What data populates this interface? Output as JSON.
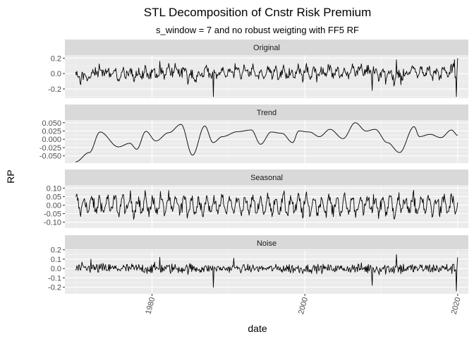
{
  "chart_data": {
    "type": "line",
    "title": "STL Decomposition of Cnstr Risk Premium",
    "subtitle": "s_window = 7 and no robust weigting with FF5 RF",
    "xlabel": "date",
    "ylabel": "RP",
    "xlim": [
      1968.6,
      2021.4
    ],
    "x_ticks": [
      1980,
      2000,
      2020
    ],
    "x_tick_labels": [
      "1980",
      "2000",
      "2020"
    ],
    "x_minor_ticks": [
      1970,
      1990,
      2010
    ],
    "x_range": [
      1970.0,
      2020.0
    ],
    "grid": true,
    "facets": [
      {
        "name": "Original",
        "ylim": [
          -0.32,
          0.24
        ],
        "y_ticks": [
          -0.2,
          0.0,
          0.2
        ],
        "y_tick_labels": [
          "-0.2",
          "0.0",
          "0.2"
        ],
        "y_minor_ticks": [
          -0.3,
          -0.1,
          0.1
        ],
        "key_points": [
          [
            1970.0,
            0.02
          ],
          [
            1971.0,
            -0.08
          ],
          [
            1972.6,
            0.08
          ],
          [
            1981.0,
            0.16
          ],
          [
            1988.0,
            -0.3
          ],
          [
            1990.9,
            0.13
          ],
          [
            1996.5,
            -0.08
          ],
          [
            2008.8,
            -0.22
          ],
          [
            2012.0,
            0.18
          ],
          [
            2019.6,
            0.18
          ],
          [
            2019.8,
            -0.3
          ],
          [
            2020.0,
            0.2
          ]
        ]
      },
      {
        "name": "Trend",
        "ylim": [
          -0.072,
          0.058
        ],
        "y_ticks": [
          -0.05,
          -0.025,
          0.0,
          0.025,
          0.05
        ],
        "y_tick_labels": [
          "-0.050",
          "-0.025",
          "0.000",
          "0.025",
          "0.050"
        ],
        "key_points": [
          [
            1970.0,
            -0.068
          ],
          [
            1971.8,
            -0.04
          ],
          [
            1973.2,
            0.022
          ],
          [
            1975.6,
            -0.023
          ],
          [
            1977.1,
            -0.012
          ],
          [
            1978.0,
            -0.03
          ],
          [
            1979.2,
            0.024
          ],
          [
            1980.5,
            -0.005
          ],
          [
            1982.2,
            0.02
          ],
          [
            1983.8,
            0.045
          ],
          [
            1985.3,
            -0.048
          ],
          [
            1986.9,
            0.04
          ],
          [
            1988.0,
            -0.01
          ],
          [
            1989.2,
            0.008
          ],
          [
            1991.2,
            0.023
          ],
          [
            1993.0,
            0.028
          ],
          [
            1994.2,
            -0.015
          ],
          [
            1995.6,
            0.022
          ],
          [
            1997.0,
            0.018
          ],
          [
            1998.4,
            -0.01
          ],
          [
            1999.2,
            0.025
          ],
          [
            2000.6,
            0.022
          ],
          [
            2001.9,
            0.008
          ],
          [
            2003.3,
            0.03
          ],
          [
            2005.0,
            0.002
          ],
          [
            2006.6,
            0.05
          ],
          [
            2008.0,
            0.025
          ],
          [
            2009.2,
            0.03
          ],
          [
            2010.8,
            -0.01
          ],
          [
            2012.4,
            -0.04
          ],
          [
            2014.3,
            0.038
          ],
          [
            2015.0,
            0.008
          ],
          [
            2016.4,
            0.015
          ],
          [
            2017.8,
            0.005
          ],
          [
            2019.2,
            0.028
          ],
          [
            2020.0,
            0.012
          ]
        ]
      },
      {
        "name": "Seasonal",
        "ylim": [
          -0.135,
          0.118
        ],
        "y_ticks": [
          -0.1,
          -0.05,
          0.0,
          0.05,
          0.1
        ],
        "y_tick_labels": [
          "-0.10",
          "-0.05",
          "0.00",
          "0.05",
          "0.10"
        ],
        "amplitude_approx": 0.08
      },
      {
        "name": "Noise",
        "ylim": [
          -0.27,
          0.19
        ],
        "y_ticks": [
          -0.2,
          -0.1,
          0.0,
          0.1,
          0.2
        ],
        "y_tick_labels": [
          "-0.2",
          "-0.1",
          "0.0",
          "0.1",
          "0.2"
        ],
        "key_points": [
          [
            1970.0,
            -0.02
          ],
          [
            1972.0,
            0.1
          ],
          [
            1981.0,
            0.12
          ],
          [
            1988.0,
            -0.2
          ],
          [
            1990.7,
            0.11
          ],
          [
            2008.8,
            -0.18
          ],
          [
            2012.0,
            0.15
          ],
          [
            2019.8,
            -0.24
          ],
          [
            2020.0,
            0.12
          ]
        ]
      }
    ]
  }
}
